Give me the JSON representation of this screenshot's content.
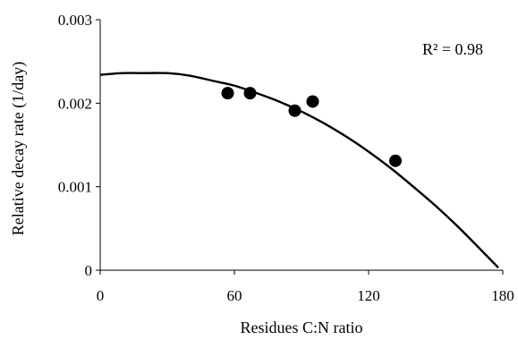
{
  "chart_data": {
    "type": "scatter",
    "title": "",
    "xlabel": "Residues C:N ratio",
    "ylabel": "Relative decay rate (1/day)",
    "xlim": [
      0,
      180
    ],
    "ylim": [
      0,
      0.003
    ],
    "x_ticks": [
      0,
      60,
      120,
      180
    ],
    "x_tick_labels": [
      "0",
      "60",
      "120",
      "180"
    ],
    "y_ticks": [
      0,
      0.001,
      0.002,
      0.003
    ],
    "y_tick_labels": [
      "0",
      "0.001",
      "0.002",
      "0.003"
    ],
    "grid": false,
    "legend": "none",
    "series": [
      {
        "kind": "points",
        "x": [
          57,
          67,
          87,
          95,
          132
        ],
        "y": [
          0.00212,
          0.00212,
          0.00191,
          0.00202,
          0.00131
        ]
      },
      {
        "kind": "fitted-curve",
        "x": [
          0,
          10,
          20,
          30,
          40,
          50,
          60,
          70,
          80,
          90,
          100,
          110,
          120,
          130,
          140,
          150,
          160,
          170,
          178
        ],
        "y": [
          0.00234,
          0.00236,
          0.00236,
          0.00236,
          0.00233,
          0.00227,
          0.00221,
          0.00212,
          0.00202,
          0.0019,
          0.00176,
          0.0016,
          0.00142,
          0.00122,
          0.001,
          0.00077,
          0.00052,
          0.00025,
          3e-05
        ]
      }
    ],
    "annotations": [
      {
        "text": "R² = 0.98"
      }
    ]
  },
  "colors": {
    "marker": "#000000",
    "line": "#000000",
    "axis": "#000000",
    "background": "#ffffff"
  }
}
